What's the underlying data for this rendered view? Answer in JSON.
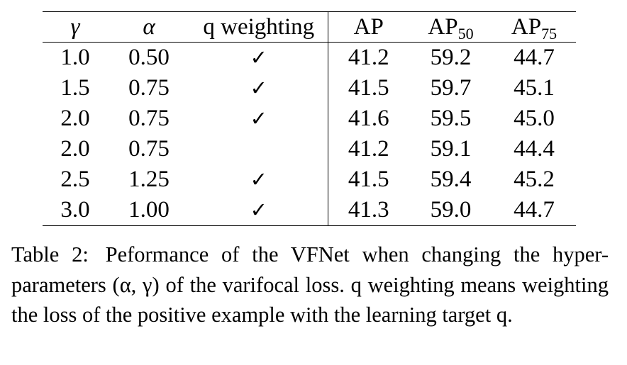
{
  "table": {
    "headers": {
      "gamma": "γ",
      "alpha": "α",
      "q_weighting": "q weighting",
      "ap": "AP",
      "ap50_base": "AP",
      "ap50_sub": "50",
      "ap75_base": "AP",
      "ap75_sub": "75"
    },
    "rows": [
      {
        "gamma": "1.0",
        "alpha": "0.50",
        "q_weighting": "✓",
        "ap": "41.2",
        "ap50": "59.2",
        "ap75": "44.7"
      },
      {
        "gamma": "1.5",
        "alpha": "0.75",
        "q_weighting": "✓",
        "ap": "41.5",
        "ap50": "59.7",
        "ap75": "45.1"
      },
      {
        "gamma": "2.0",
        "alpha": "0.75",
        "q_weighting": "✓",
        "ap": "41.6",
        "ap50": "59.5",
        "ap75": "45.0"
      },
      {
        "gamma": "2.0",
        "alpha": "0.75",
        "q_weighting": "",
        "ap": "41.2",
        "ap50": "59.1",
        "ap75": "44.4"
      },
      {
        "gamma": "2.5",
        "alpha": "1.25",
        "q_weighting": "✓",
        "ap": "41.5",
        "ap50": "59.4",
        "ap75": "45.2"
      },
      {
        "gamma": "3.0",
        "alpha": "1.00",
        "q_weighting": "✓",
        "ap": "41.3",
        "ap50": "59.0",
        "ap75": "44.7"
      }
    ]
  },
  "caption": {
    "label": "Table 2:",
    "text": "Peformance of the VFNet when changing the hyper-parameters (α, γ) of the varifocal loss. q weighting means weighting the loss of the positive example with the learning target q."
  }
}
